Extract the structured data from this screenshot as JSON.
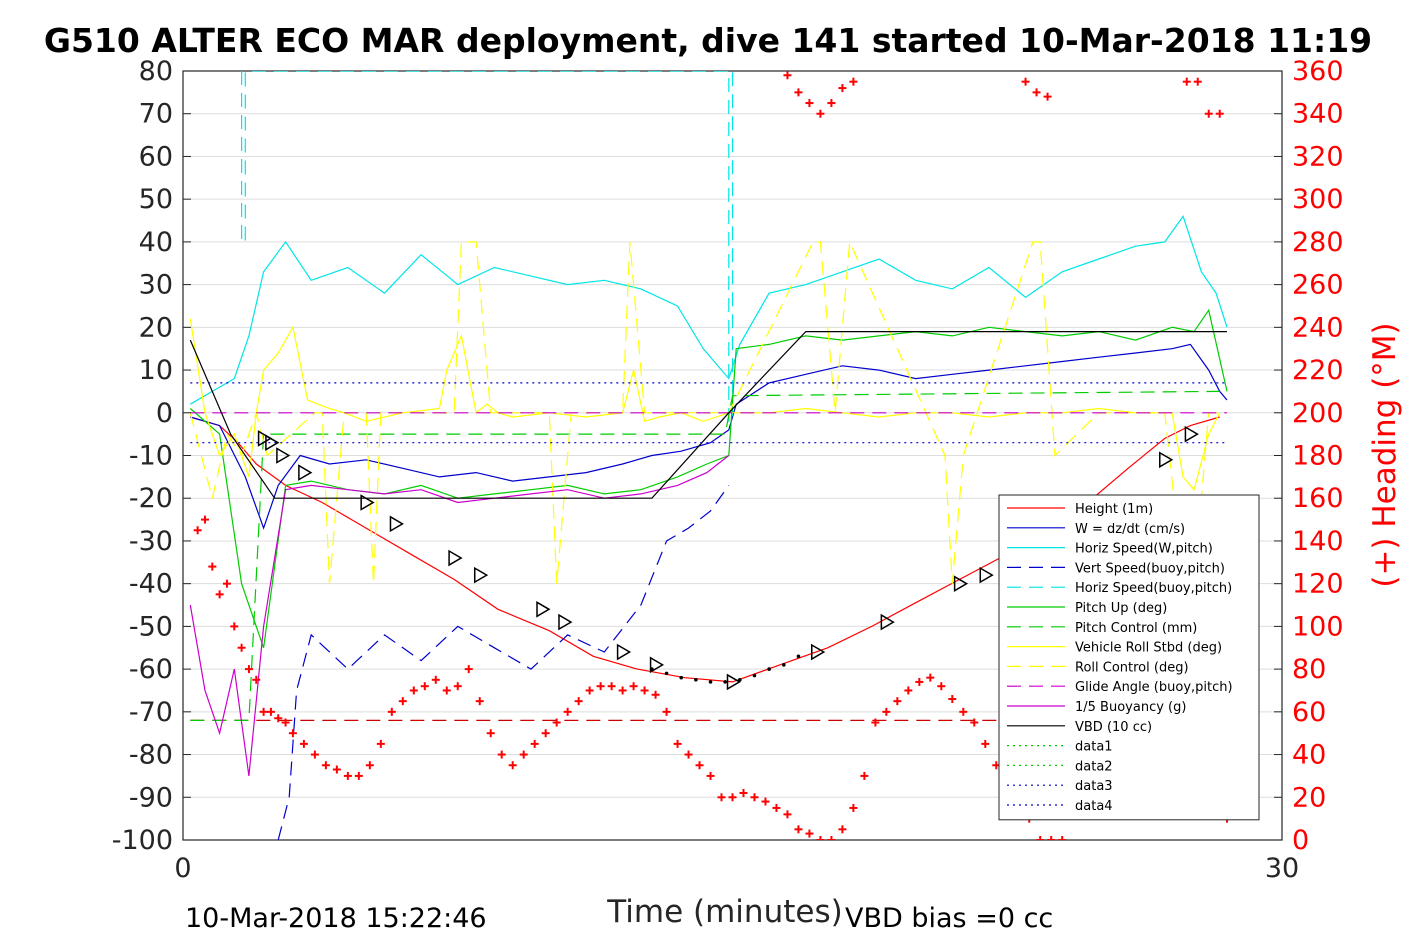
{
  "chart_data": {
    "type": "line",
    "title": "G510 ALTER ECO MAR deployment, dive 141 started 10-Mar-2018 11:19",
    "xlabel": "Time (minutes)",
    "ylabel_right": "(+) Heading (°M)",
    "xlim": [
      0,
      30
    ],
    "ylim": [
      -100,
      80
    ],
    "ylim_right": [
      0,
      360
    ],
    "x_ticks": [
      "0",
      "30"
    ],
    "y_ticks": [
      "80",
      "70",
      "60",
      "50",
      "40",
      "30",
      "20",
      "10",
      "0",
      "-10",
      "-20",
      "-30",
      "-40",
      "-50",
      "-60",
      "-70",
      "-80",
      "-90",
      "-100"
    ],
    "y_ticks_right": [
      "360",
      "340",
      "320",
      "300",
      "280",
      "260",
      "240",
      "220",
      "200",
      "180",
      "160",
      "140",
      "120",
      "100",
      "80",
      "60",
      "40",
      "20",
      "0"
    ],
    "grid": true,
    "legend_position": "lower-right",
    "footer_left": "10-Mar-2018 15:22:46",
    "footer_right": "VBD bias =0 cc",
    "series": [
      {
        "name": "Height (1m)",
        "color": "#ff0000",
        "dash": "solid",
        "x": [
          0.2,
          1,
          1.5,
          2,
          2.8,
          3.8,
          4.8,
          6.2,
          7.4,
          8.6,
          10,
          11.2,
          12.4,
          13.7,
          15,
          16.3,
          17.6,
          18.8,
          20.1,
          21.2,
          22.3,
          23.5,
          24.7,
          25.8,
          26.8,
          27.5,
          28.3
        ],
        "y": [
          -1,
          -3,
          -7,
          -12,
          -17,
          -21,
          -26,
          -33,
          -39,
          -46,
          -51,
          -57,
          -60,
          -62,
          -63,
          -59,
          -55,
          -50,
          -44,
          -39,
          -34,
          -28,
          -21,
          -13,
          -6,
          -3,
          -1
        ]
      },
      {
        "name": "W = dz/dt (cm/s)",
        "color": "#0000cc",
        "dash": "solid",
        "x": [
          0.2,
          1,
          1.7,
          2.2,
          2.6,
          3.2,
          4,
          5,
          6,
          7,
          8,
          9,
          10,
          11,
          12,
          12.8,
          13.6,
          14.4,
          14.9,
          15.1,
          16,
          17,
          18,
          19,
          20,
          21,
          22,
          23,
          24,
          25,
          26,
          27,
          27.5,
          28,
          28.3,
          28.5
        ],
        "y": [
          -1,
          -3,
          -15,
          -27,
          -17,
          -10,
          -12,
          -11,
          -13,
          -15,
          -14,
          -16,
          -15,
          -14,
          -12,
          -10,
          -9,
          -7,
          -4,
          2,
          7,
          9,
          11,
          10,
          8,
          9,
          10,
          11,
          12,
          13,
          14,
          15,
          16,
          10,
          5,
          3
        ]
      },
      {
        "name": "Horiz Speed(W,pitch)",
        "color": "#00e5e5",
        "dash": "solid",
        "x": [
          0.2,
          0.8,
          1.4,
          1.8,
          2.2,
          2.8,
          3.5,
          4.5,
          5.5,
          6.5,
          7.5,
          8.5,
          9.5,
          10.5,
          11.5,
          12.5,
          13.5,
          14.2,
          14.9,
          15.2,
          16,
          17,
          18,
          19,
          20,
          21,
          22,
          23,
          24,
          25,
          26,
          26.8,
          27.3,
          27.8,
          28.2,
          28.5
        ],
        "y": [
          2,
          5,
          8,
          18,
          33,
          40,
          31,
          34,
          28,
          37,
          30,
          34,
          32,
          30,
          31,
          29,
          25,
          15,
          8,
          16,
          28,
          30,
          33,
          36,
          31,
          29,
          34,
          27,
          33,
          36,
          39,
          40,
          46,
          33,
          28,
          20
        ]
      },
      {
        "name": "Vert Speed(buoy,pitch)",
        "color": "#0000cc",
        "dash": "dashed",
        "x": [
          2.6,
          2.9,
          3.1,
          3.5,
          4.5,
          5.5,
          6.5,
          7.5,
          8.5,
          9.5,
          10.5,
          11.5,
          12.5,
          13.2,
          13.8,
          14.4,
          14.9
        ],
        "y": [
          -100,
          -90,
          -65,
          -52,
          -60,
          -52,
          -58,
          -50,
          -55,
          -60,
          -52,
          -56,
          -45,
          -30,
          -27,
          -23,
          -17
        ]
      },
      {
        "name": "Horiz Speed(buoy,pitch)",
        "color": "#00e5e5",
        "dash": "dashed",
        "x": [
          1.6,
          1.6,
          1.7,
          1.7,
          14.9,
          14.9,
          15.0,
          15.0
        ],
        "y": [
          80,
          40,
          40,
          80,
          80,
          -2,
          -2,
          80
        ]
      },
      {
        "name": "Pitch Up (deg)",
        "color": "#00cc00",
        "dash": "solid",
        "x": [
          0.2,
          1,
          1.6,
          2.2,
          2.8,
          3.5,
          4.5,
          5.5,
          6.5,
          7.5,
          8.5,
          9.5,
          10.5,
          11.5,
          12.5,
          13.5,
          14.3,
          14.9,
          15.1,
          16,
          17,
          18,
          19,
          20,
          21,
          22,
          23,
          24,
          25,
          26,
          27,
          27.6,
          28,
          28.5
        ],
        "y": [
          1,
          -5,
          -40,
          -55,
          -17,
          -16,
          -18,
          -19,
          -17,
          -20,
          -19,
          -18,
          -17,
          -19,
          -18,
          -15,
          -12,
          -10,
          15,
          16,
          18,
          17,
          18,
          19,
          18,
          20,
          19,
          18,
          19,
          17,
          20,
          19,
          24,
          5
        ]
      },
      {
        "name": "Pitch Control (mm)",
        "color": "#00cc00",
        "dash": "dashed",
        "x": [
          0.2,
          1.8,
          2.2,
          3,
          14.8,
          15,
          28.3
        ],
        "y": [
          -72,
          -72,
          -5,
          -5,
          -5,
          4,
          5
        ]
      },
      {
        "name": "Vehicle Roll Stbd (deg)",
        "color": "#ffff00",
        "dash": "solid",
        "x": [
          0.2,
          0.6,
          1.0,
          1.4,
          1.8,
          2.0,
          2.2,
          2.6,
          3.0,
          3.4,
          4.0,
          4.4,
          5,
          6,
          7,
          7.2,
          7.6,
          8,
          8.3,
          8.6,
          9,
          10,
          11,
          12,
          12.3,
          12.6,
          13,
          13.6,
          14.2,
          14.9,
          15.2,
          16,
          17,
          18,
          19,
          20,
          21,
          22,
          23,
          24,
          25,
          26,
          27,
          27.3,
          27.6,
          28,
          28.3
        ],
        "y": [
          22,
          0,
          -10,
          -5,
          -15,
          0,
          10,
          14,
          20,
          3,
          1,
          0,
          -2,
          0,
          1,
          10,
          18,
          0,
          2,
          0,
          -1,
          0,
          -1,
          0,
          10,
          -2,
          -1,
          0,
          -2,
          0,
          0,
          0,
          1,
          0,
          -1,
          0,
          0,
          -1,
          0,
          0,
          1,
          0,
          0,
          -15,
          -18,
          -5,
          0
        ]
      },
      {
        "name": "Roll Control (deg)",
        "color": "#ffff00",
        "dash": "dashed",
        "x": [
          0.2,
          0.8,
          1.2,
          1.6,
          2.0,
          2.3,
          3.6,
          3.8,
          4.0,
          4.4,
          5.0,
          5.2,
          5.4,
          7.4,
          7.6,
          8.0,
          8.4,
          10,
          10.2,
          10.6,
          12,
          12.2,
          12.6,
          14.9,
          17.2,
          17.4,
          17.8,
          18.2,
          20.8,
          21.0,
          21.3,
          23.2,
          23.4,
          23.8,
          25,
          26,
          26.4,
          26.8,
          27.3,
          27.6,
          28,
          28.5
        ],
        "y": [
          0,
          -20,
          -5,
          -10,
          0,
          -10,
          0,
          0,
          -40,
          0,
          0,
          -40,
          0,
          0,
          40,
          40,
          0,
          0,
          -40,
          0,
          0,
          40,
          0,
          0,
          40,
          40,
          0,
          40,
          -10,
          -40,
          -10,
          40,
          40,
          -10,
          0,
          0,
          0,
          0,
          -40,
          -40,
          0,
          0
        ]
      },
      {
        "name": "Glide Angle (buoy,pitch)",
        "color": "#cc00cc",
        "dash": "dashed",
        "x": [
          0.2,
          14.9,
          15.0,
          28.5
        ],
        "y": [
          0,
          0,
          0,
          0
        ]
      },
      {
        "name": "1/5 Buoyancy (g)",
        "color": "#cc00cc",
        "dash": "solid",
        "x": [
          0.2,
          0.6,
          1.0,
          1.4,
          1.8,
          2.2,
          2.8,
          3.5,
          4.5,
          5.5,
          6.5,
          7.5,
          8.5,
          9.5,
          10.5,
          11.5,
          12.5,
          13.5,
          14.3,
          14.9
        ],
        "y": [
          -45,
          -65,
          -75,
          -60,
          -85,
          -50,
          -18,
          -17,
          -18,
          -19,
          -18,
          -21,
          -20,
          -19,
          -18,
          -20,
          -19,
          -17,
          -14,
          -10
        ]
      },
      {
        "name": "VBD (10 cc)",
        "color": "#000000",
        "dash": "solid",
        "x": [
          0.2,
          1.3,
          2.5,
          12.8,
          14.9,
          17,
          28.5
        ],
        "y": [
          17,
          -5,
          -20,
          -20,
          0,
          19,
          19
        ]
      },
      {
        "name": "data1",
        "color": "#00cc00",
        "dash": "dotted",
        "x": [],
        "y": []
      },
      {
        "name": "data2",
        "color": "#00cc00",
        "dash": "dotted",
        "x": [],
        "y": []
      },
      {
        "name": "data3",
        "color": "#0000cc",
        "dash": "dotted",
        "x": [
          0.2,
          28.5
        ],
        "y": [
          7,
          7
        ]
      },
      {
        "name": "data4",
        "color": "#0000cc",
        "dash": "dotted",
        "x": [
          0.2,
          28.5
        ],
        "y": [
          -7,
          -7
        ]
      }
    ],
    "hline": {
      "y": -72,
      "color": "#cc0000",
      "dash": "dashed",
      "x": [
        0.2,
        28.5
      ]
    },
    "markers": {
      "symbol": "triangle-right",
      "color": "#000000",
      "x": [
        2.2,
        2.4,
        2.7,
        3.3,
        5,
        5.8,
        7.4,
        8.1,
        9.8,
        10.4,
        12,
        12.9,
        15,
        17.3,
        19.2,
        21.2,
        21.9,
        23.3,
        25,
        26.8,
        27.5
      ],
      "y": [
        -6,
        -7,
        -10,
        -14,
        -21,
        -26,
        -34,
        -38,
        -46,
        -49,
        -56,
        -59,
        -63,
        -56,
        -49,
        -40,
        -38,
        -32,
        -21,
        -11,
        -5
      ]
    },
    "depth_dots": {
      "color": "#000000",
      "x": [
        12.8,
        13.2,
        13.6,
        14,
        14.4,
        14.8,
        15.2,
        15.6,
        16,
        16.4,
        16.8
      ],
      "y": [
        -60,
        -61,
        -62,
        -62.5,
        -63,
        -63,
        -62.5,
        -61.5,
        -60,
        -59,
        -57
      ]
    },
    "heading_scatter": {
      "name": "(+) Heading (°M)",
      "color": "#ff0000",
      "axis": "right",
      "x": [
        0.4,
        0.6,
        0.8,
        1.0,
        1.2,
        1.4,
        1.6,
        1.8,
        2.0,
        2.2,
        2.4,
        2.6,
        2.8,
        3.0,
        3.3,
        3.6,
        3.9,
        4.2,
        4.5,
        4.8,
        5.1,
        5.4,
        5.7,
        6.0,
        6.3,
        6.6,
        6.9,
        7.2,
        7.5,
        7.8,
        8.1,
        8.4,
        8.7,
        9.0,
        9.3,
        9.6,
        9.9,
        10.2,
        10.5,
        10.8,
        11.1,
        11.4,
        11.7,
        12.0,
        12.3,
        12.6,
        12.9,
        13.2,
        13.5,
        13.8,
        14.1,
        14.4,
        14.7,
        15.0,
        15.3,
        15.6,
        15.9,
        16.2,
        16.5,
        16.8,
        17.1,
        17.4,
        17.7,
        18.0,
        18.3,
        18.6,
        18.9,
        19.2,
        19.5,
        19.8,
        20.1,
        20.4,
        20.7,
        21.0,
        21.3,
        21.6,
        21.9,
        22.2,
        22.5,
        22.8,
        23.1,
        23.4,
        23.7,
        24.0,
        24.3,
        24.6,
        24.9,
        25.2,
        25.5,
        25.8,
        26.1,
        26.4,
        26.7,
        27.0,
        27.3,
        27.6,
        27.9,
        28.2,
        28.5,
        16.5,
        16.8,
        17.1,
        17.4,
        17.7,
        18.0,
        18.3,
        23.0,
        23.3,
        23.6,
        27.4,
        27.7,
        28.0,
        28.3
      ],
      "y": [
        145,
        150,
        128,
        115,
        120,
        100,
        90,
        80,
        75,
        60,
        60,
        57,
        55,
        50,
        45,
        40,
        35,
        33,
        30,
        30,
        35,
        45,
        60,
        65,
        70,
        72,
        75,
        70,
        72,
        80,
        65,
        50,
        40,
        35,
        40,
        45,
        50,
        55,
        60,
        65,
        70,
        72,
        72,
        70,
        72,
        70,
        68,
        60,
        45,
        40,
        35,
        30,
        20,
        20,
        22,
        20,
        18,
        15,
        12,
        5,
        3,
        0,
        0,
        5,
        15,
        30,
        55,
        60,
        65,
        70,
        74,
        76,
        72,
        66,
        60,
        55,
        45,
        35,
        30,
        25,
        10,
        0,
        0,
        0,
        20,
        30,
        40,
        50,
        60,
        70,
        75,
        78,
        76,
        72,
        60,
        50,
        40,
        20,
        10,
        358,
        350,
        345,
        340,
        345,
        352,
        355,
        355,
        350,
        348,
        355,
        355,
        340,
        340
      ]
    }
  }
}
